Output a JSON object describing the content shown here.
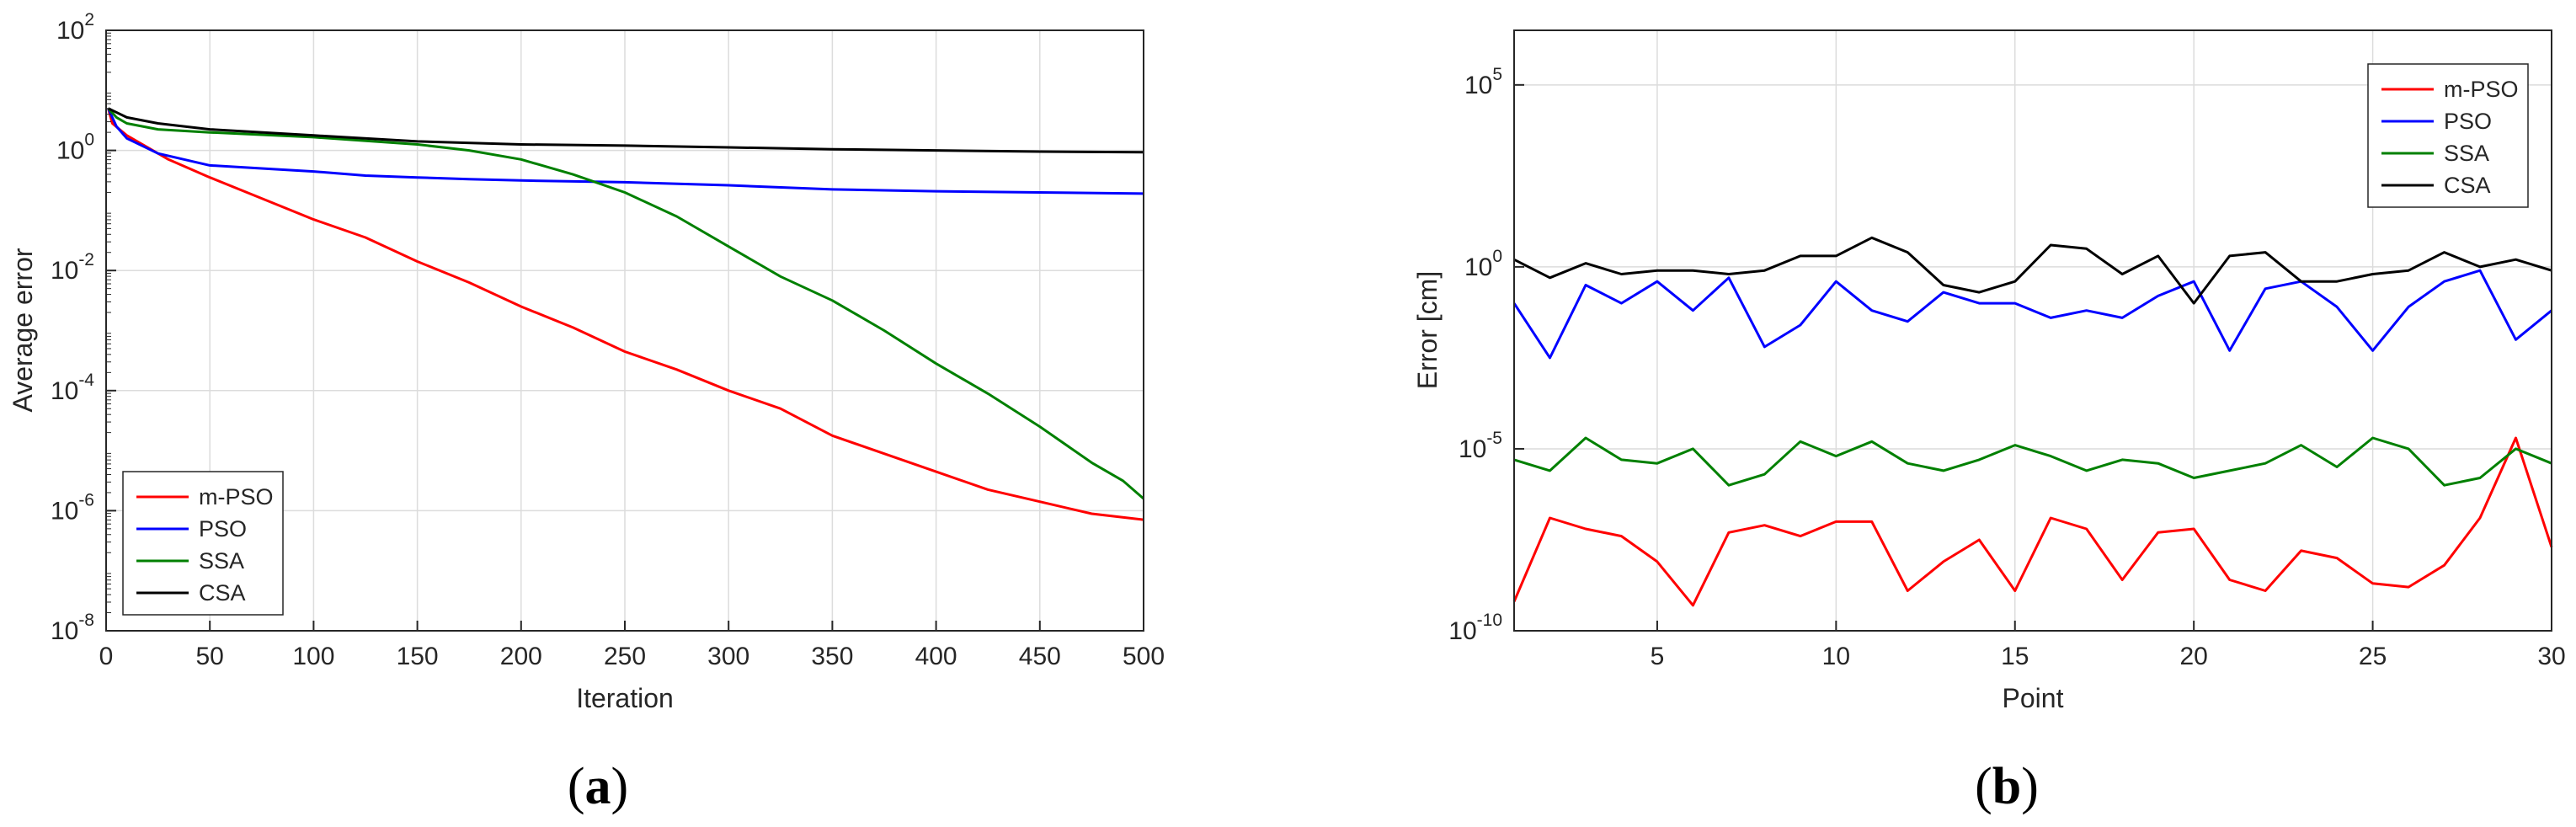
{
  "chart_data": [
    {
      "type": "line",
      "panel": "(a)",
      "xlabel": "Iteration",
      "ylabel": "Average error",
      "yscale": "log",
      "xlim": [
        0,
        500
      ],
      "ylim_exp": [
        -8,
        2
      ],
      "xticks": [
        0,
        50,
        100,
        150,
        200,
        250,
        300,
        350,
        400,
        450,
        500
      ],
      "yticks_exp": [
        -8,
        -6,
        -4,
        -2,
        0,
        2
      ],
      "tick_base": "10",
      "grid": true,
      "legend_position": "bottom-left",
      "series": [
        {
          "name": "m-PSO",
          "color": "#ff0000",
          "x": [
            1,
            3,
            10,
            20,
            30,
            40,
            50,
            75,
            100,
            125,
            150,
            175,
            200,
            225,
            250,
            275,
            300,
            325,
            350,
            375,
            400,
            425,
            450,
            475,
            500
          ],
          "log10_y": [
            0.7,
            0.45,
            0.25,
            0.05,
            -0.15,
            -0.3,
            -0.45,
            -0.8,
            -1.15,
            -1.45,
            -1.85,
            -2.2,
            -2.6,
            -2.95,
            -3.35,
            -3.65,
            -4.0,
            -4.3,
            -4.75,
            -5.05,
            -5.35,
            -5.65,
            -5.85,
            -6.05,
            -6.15
          ]
        },
        {
          "name": "PSO",
          "color": "#0000ff",
          "x": [
            1,
            5,
            10,
            25,
            50,
            75,
            100,
            125,
            150,
            175,
            200,
            250,
            300,
            350,
            400,
            450,
            500
          ],
          "log10_y": [
            0.7,
            0.4,
            0.2,
            -0.05,
            -0.25,
            -0.3,
            -0.35,
            -0.42,
            -0.45,
            -0.48,
            -0.5,
            -0.53,
            -0.58,
            -0.65,
            -0.68,
            -0.7,
            -0.72
          ]
        },
        {
          "name": "SSA",
          "color": "#008000",
          "x": [
            1,
            5,
            10,
            25,
            50,
            100,
            150,
            175,
            200,
            225,
            250,
            275,
            300,
            325,
            350,
            375,
            400,
            425,
            450,
            475,
            490,
            500
          ],
          "log10_y": [
            0.7,
            0.55,
            0.45,
            0.35,
            0.3,
            0.22,
            0.1,
            0.0,
            -0.15,
            -0.4,
            -0.7,
            -1.1,
            -1.6,
            -2.1,
            -2.5,
            -3.0,
            -3.55,
            -4.05,
            -4.6,
            -5.2,
            -5.5,
            -5.8
          ]
        },
        {
          "name": "CSA",
          "color": "#000000",
          "x": [
            1,
            10,
            25,
            50,
            100,
            150,
            200,
            250,
            300,
            350,
            400,
            450,
            500
          ],
          "log10_y": [
            0.7,
            0.55,
            0.45,
            0.35,
            0.25,
            0.15,
            0.1,
            0.08,
            0.05,
            0.02,
            0.0,
            -0.02,
            -0.03
          ]
        }
      ]
    },
    {
      "type": "line",
      "panel": "(b)",
      "xlabel": "Point",
      "ylabel": "Error [cm]",
      "yscale": "log",
      "xlim": [
        1,
        30
      ],
      "ylim_exp": [
        -10,
        6.5
      ],
      "xticks": [
        5,
        10,
        15,
        20,
        25,
        30
      ],
      "yticks_exp": [
        -10,
        -5,
        0,
        5
      ],
      "tick_base": "10",
      "grid": true,
      "legend_position": "top-right",
      "series": [
        {
          "name": "m-PSO",
          "color": "#ff0000",
          "x": [
            1,
            2,
            3,
            4,
            5,
            6,
            7,
            8,
            9,
            10,
            11,
            12,
            13,
            14,
            15,
            16,
            17,
            18,
            19,
            20,
            21,
            22,
            23,
            24,
            25,
            26,
            27,
            28,
            29,
            30
          ],
          "log10_y": [
            -9.2,
            -6.9,
            -7.2,
            -7.4,
            -8.1,
            -9.3,
            -7.3,
            -7.1,
            -7.4,
            -7.0,
            -7.0,
            -8.9,
            -8.1,
            -7.5,
            -8.9,
            -6.9,
            -7.2,
            -8.6,
            -7.3,
            -7.2,
            -8.6,
            -8.9,
            -7.8,
            -8.0,
            -8.7,
            -8.8,
            -8.2,
            -6.9,
            -4.7,
            -7.7
          ]
        },
        {
          "name": "PSO",
          "color": "#0000ff",
          "x": [
            1,
            2,
            3,
            4,
            5,
            6,
            7,
            8,
            9,
            10,
            11,
            12,
            13,
            14,
            15,
            16,
            17,
            18,
            19,
            20,
            21,
            22,
            23,
            24,
            25,
            26,
            27,
            28,
            29,
            30
          ],
          "log10_y": [
            -1.0,
            -2.5,
            -0.5,
            -1.0,
            -0.4,
            -1.2,
            -0.3,
            -2.2,
            -1.6,
            -0.4,
            -1.2,
            -1.5,
            -0.7,
            -1.0,
            -1.0,
            -1.4,
            -1.2,
            -1.4,
            -0.8,
            -0.4,
            -2.3,
            -0.6,
            -0.4,
            -1.1,
            -2.3,
            -1.1,
            -0.4,
            -0.1,
            -2.0,
            -1.2
          ]
        },
        {
          "name": "SSA",
          "color": "#008000",
          "x": [
            1,
            2,
            3,
            4,
            5,
            6,
            7,
            8,
            9,
            10,
            11,
            12,
            13,
            14,
            15,
            16,
            17,
            18,
            19,
            20,
            21,
            22,
            23,
            24,
            25,
            26,
            27,
            28,
            29,
            30
          ],
          "log10_y": [
            -5.3,
            -5.6,
            -4.7,
            -5.3,
            -5.4,
            -5.0,
            -6.0,
            -5.7,
            -4.8,
            -5.2,
            -4.8,
            -5.4,
            -5.6,
            -5.3,
            -4.9,
            -5.2,
            -5.6,
            -5.3,
            -5.4,
            -5.8,
            -5.6,
            -5.4,
            -4.9,
            -5.5,
            -4.7,
            -5.0,
            -6.0,
            -5.8,
            -5.0,
            -5.4
          ]
        },
        {
          "name": "CSA",
          "color": "#000000",
          "x": [
            1,
            2,
            3,
            4,
            5,
            6,
            7,
            8,
            9,
            10,
            11,
            12,
            13,
            14,
            15,
            16,
            17,
            18,
            19,
            20,
            21,
            22,
            23,
            24,
            25,
            26,
            27,
            28,
            29,
            30
          ],
          "log10_y": [
            0.2,
            -0.3,
            0.1,
            -0.2,
            -0.1,
            -0.1,
            -0.2,
            -0.1,
            0.3,
            0.3,
            0.8,
            0.4,
            -0.5,
            -0.7,
            -0.4,
            0.6,
            0.5,
            -0.2,
            0.3,
            -1.0,
            0.3,
            0.4,
            -0.4,
            -0.4,
            -0.2,
            -0.1,
            0.4,
            0.0,
            0.2,
            -0.1
          ]
        }
      ]
    }
  ],
  "captions": [
    {
      "open": "(",
      "letter": "a",
      "close": ")"
    },
    {
      "open": "(",
      "letter": "b",
      "close": ")"
    }
  ]
}
